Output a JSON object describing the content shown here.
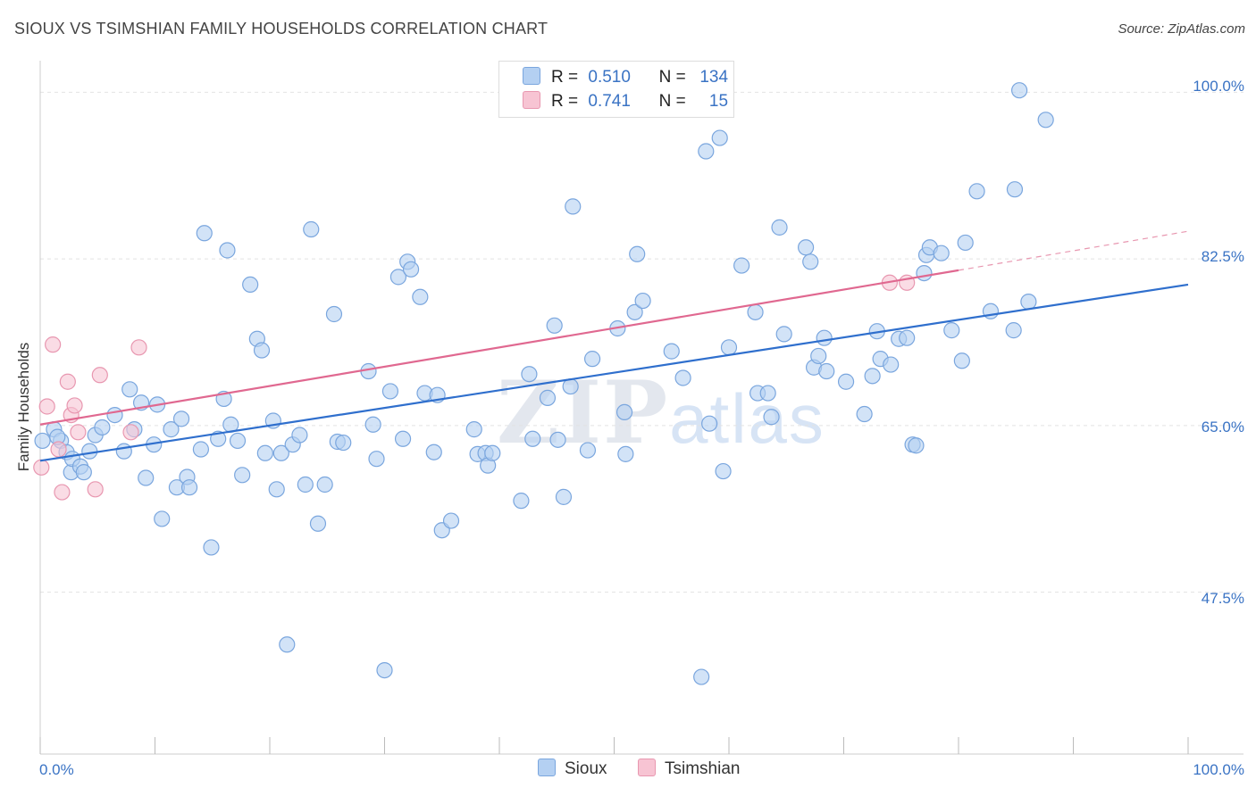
{
  "header": {
    "title": "SIOUX VS TSIMSHIAN FAMILY HOUSEHOLDS CORRELATION CHART",
    "source": "Source: ZipAtlas.com"
  },
  "watermark": {
    "zip": "ZIP",
    "atlas": "atlas"
  },
  "legend": {
    "r_label": "R =",
    "n_label": "N =",
    "rows": [
      {
        "series": "Sioux",
        "r": "0.510",
        "n": "134"
      },
      {
        "series": "Tsimshian",
        "r": "0.741",
        "n": "15"
      }
    ]
  },
  "colors": {
    "sioux_fill": "#b4d0f2",
    "sioux_stroke": "#7aa6de",
    "sioux_line": "#2f6fcd",
    "tsimshian_fill": "#f7c4d3",
    "tsimshian_stroke": "#e897b0",
    "tsimshian_line": "#e06890",
    "axis_text": "#3a73c4",
    "grid": "#e2e2e2"
  },
  "chart_data": {
    "type": "scatter",
    "title": "SIOUX VS TSIMSHIAN FAMILY HOUSEHOLDS CORRELATION CHART",
    "xlabel": "",
    "ylabel": "Family Households",
    "xlim": [
      0,
      100
    ],
    "ylim": [
      30.5,
      102
    ],
    "x_tick_labels": [
      "0.0%",
      "100.0%"
    ],
    "y_ticks": [
      47.5,
      65.0,
      82.5,
      100.0
    ],
    "y_tick_labels": [
      "47.5%",
      "65.0%",
      "82.5%",
      "100.0%"
    ],
    "grid": "horizontal dashed",
    "legend_position": "bottom-center",
    "series": [
      {
        "name": "Sioux",
        "r": 0.51,
        "n": 134,
        "trend": {
          "x": [
            0,
            100
          ],
          "y": [
            61.3,
            79.8
          ]
        },
        "points": [
          [
            0.2,
            63.4
          ],
          [
            1.2,
            64.6
          ],
          [
            1.8,
            63.4
          ],
          [
            2.3,
            62.2
          ],
          [
            2.7,
            60.1
          ],
          [
            2.8,
            61.5
          ],
          [
            3.5,
            60.7
          ],
          [
            3.8,
            60.1
          ],
          [
            4.3,
            62.3
          ],
          [
            4.8,
            64.0
          ],
          [
            5.4,
            64.8
          ],
          [
            6.5,
            66.1
          ],
          [
            7.3,
            62.3
          ],
          [
            7.8,
            68.8
          ],
          [
            8.2,
            64.6
          ],
          [
            8.8,
            67.4
          ],
          [
            9.2,
            59.5
          ],
          [
            9.9,
            63.0
          ],
          [
            10.2,
            67.2
          ],
          [
            10.6,
            55.2
          ],
          [
            11.4,
            64.6
          ],
          [
            11.9,
            58.5
          ],
          [
            12.3,
            65.7
          ],
          [
            12.8,
            59.6
          ],
          [
            13.0,
            58.5
          ],
          [
            14.0,
            62.5
          ],
          [
            14.3,
            85.2
          ],
          [
            14.9,
            52.2
          ],
          [
            15.5,
            63.6
          ],
          [
            16.0,
            67.8
          ],
          [
            16.3,
            83.4
          ],
          [
            16.6,
            65.1
          ],
          [
            17.2,
            63.4
          ],
          [
            17.6,
            59.8
          ],
          [
            18.3,
            79.8
          ],
          [
            18.9,
            74.1
          ],
          [
            19.3,
            72.9
          ],
          [
            19.6,
            62.1
          ],
          [
            20.3,
            65.5
          ],
          [
            20.6,
            58.3
          ],
          [
            21.0,
            62.1
          ],
          [
            21.5,
            42.0
          ],
          [
            22.0,
            63.0
          ],
          [
            22.6,
            64.0
          ],
          [
            23.1,
            58.8
          ],
          [
            23.6,
            85.6
          ],
          [
            24.2,
            54.7
          ],
          [
            24.8,
            58.8
          ],
          [
            25.6,
            76.7
          ],
          [
            25.9,
            63.3
          ],
          [
            26.4,
            63.2
          ],
          [
            28.6,
            70.7
          ],
          [
            29.0,
            65.1
          ],
          [
            29.3,
            61.5
          ],
          [
            30.0,
            39.3
          ],
          [
            30.5,
            68.6
          ],
          [
            31.2,
            80.6
          ],
          [
            31.6,
            63.6
          ],
          [
            32.0,
            82.2
          ],
          [
            32.3,
            81.4
          ],
          [
            33.1,
            78.5
          ],
          [
            33.5,
            68.4
          ],
          [
            34.3,
            62.2
          ],
          [
            35.0,
            54.0
          ],
          [
            35.8,
            55.0
          ],
          [
            37.8,
            64.6
          ],
          [
            38.1,
            62.0
          ],
          [
            38.8,
            62.1
          ],
          [
            39.0,
            60.8
          ],
          [
            39.4,
            62.1
          ],
          [
            41.9,
            57.1
          ],
          [
            42.6,
            70.4
          ],
          [
            42.9,
            63.6
          ],
          [
            44.2,
            67.9
          ],
          [
            44.8,
            75.5
          ],
          [
            45.1,
            63.5
          ],
          [
            45.6,
            57.5
          ],
          [
            46.2,
            69.1
          ],
          [
            46.4,
            88.0
          ],
          [
            48.1,
            72.0
          ],
          [
            50.3,
            75.2
          ],
          [
            50.9,
            66.4
          ],
          [
            51.0,
            62.0
          ],
          [
            51.8,
            76.9
          ],
          [
            52.0,
            83.0
          ],
          [
            52.5,
            78.1
          ],
          [
            55.0,
            72.8
          ],
          [
            56.0,
            70.0
          ],
          [
            57.6,
            38.6
          ],
          [
            58.0,
            93.8
          ],
          [
            58.3,
            65.2
          ],
          [
            59.2,
            95.2
          ],
          [
            59.5,
            60.2
          ],
          [
            60.0,
            73.2
          ],
          [
            61.1,
            81.8
          ],
          [
            62.3,
            76.9
          ],
          [
            62.5,
            68.4
          ],
          [
            63.4,
            68.4
          ],
          [
            63.7,
            65.9
          ],
          [
            64.4,
            85.8
          ],
          [
            64.8,
            74.6
          ],
          [
            66.7,
            83.7
          ],
          [
            67.1,
            82.2
          ],
          [
            67.4,
            71.1
          ],
          [
            67.8,
            72.3
          ],
          [
            68.3,
            74.2
          ],
          [
            68.5,
            70.7
          ],
          [
            70.2,
            69.6
          ],
          [
            71.8,
            66.2
          ],
          [
            72.5,
            70.2
          ],
          [
            72.9,
            74.9
          ],
          [
            73.2,
            72.0
          ],
          [
            74.1,
            71.4
          ],
          [
            74.8,
            74.1
          ],
          [
            75.5,
            74.2
          ],
          [
            76.0,
            63.0
          ],
          [
            76.3,
            62.9
          ],
          [
            77.0,
            81.0
          ],
          [
            77.2,
            82.9
          ],
          [
            77.5,
            83.7
          ],
          [
            78.5,
            83.1
          ],
          [
            79.4,
            75.0
          ],
          [
            80.3,
            71.8
          ],
          [
            80.6,
            84.2
          ],
          [
            81.6,
            89.6
          ],
          [
            82.8,
            77.0
          ],
          [
            84.8,
            75.0
          ],
          [
            84.9,
            89.8
          ],
          [
            85.3,
            100.2
          ],
          [
            86.1,
            78.0
          ],
          [
            87.6,
            97.1
          ],
          [
            1.5,
            63.8
          ],
          [
            47.7,
            62.4
          ],
          [
            34.6,
            68.2
          ]
        ]
      },
      {
        "name": "Tsimshian",
        "r": 0.741,
        "n": 15,
        "trend": {
          "x": [
            0,
            80
          ],
          "y": [
            65.1,
            81.3
          ]
        },
        "trend_dashed": {
          "x": [
            80,
            100
          ],
          "y": [
            81.3,
            85.4
          ]
        },
        "points": [
          [
            0.1,
            60.6
          ],
          [
            0.6,
            67.0
          ],
          [
            1.1,
            73.5
          ],
          [
            1.6,
            62.5
          ],
          [
            1.9,
            58.0
          ],
          [
            2.4,
            69.6
          ],
          [
            2.7,
            66.1
          ],
          [
            3.0,
            67.1
          ],
          [
            3.3,
            64.3
          ],
          [
            4.8,
            58.3
          ],
          [
            5.2,
            70.3
          ],
          [
            7.9,
            64.3
          ],
          [
            8.6,
            73.2
          ],
          [
            74.0,
            80.0
          ],
          [
            75.5,
            80.0
          ]
        ]
      }
    ]
  }
}
